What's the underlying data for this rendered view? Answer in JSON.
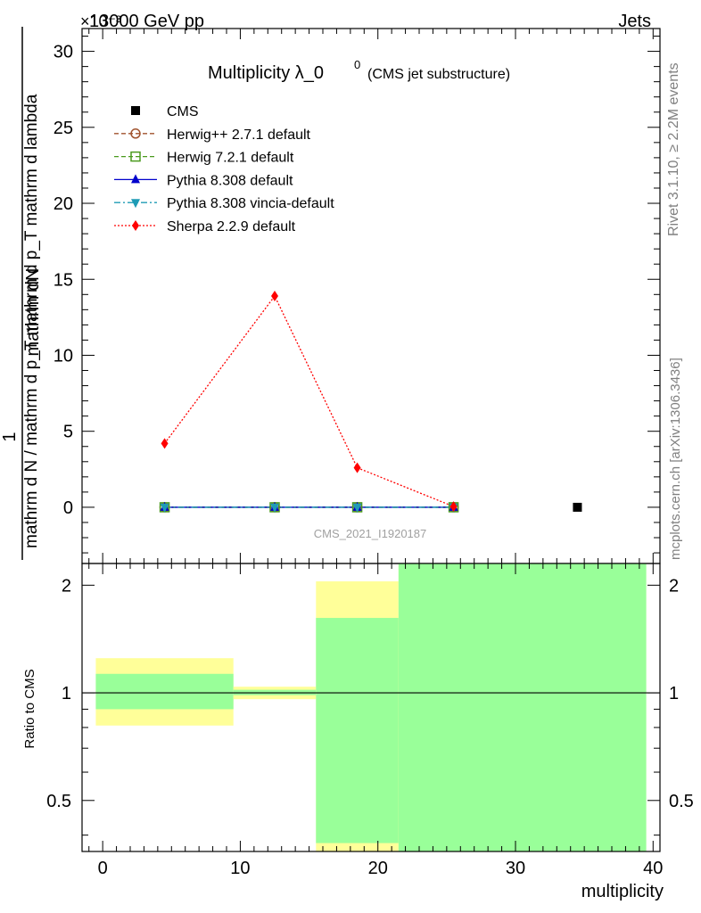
{
  "header": {
    "left": "13000 GeV pp",
    "right": "Jets"
  },
  "title": {
    "main": "Multiplicity λ_0",
    "sup": "0",
    "paren": "(CMS jet substructure)"
  },
  "side_labels": {
    "rivet": "Rivet 3.1.10, ≥ 2.2M events",
    "mcplots": "mcplots.cern.ch [arXiv:1306.3436]"
  },
  "watermark": "CMS_2021_I1920187",
  "y_label": {
    "numerator_one": "1",
    "numerator_two": "mathrm dN",
    "denominator": "mathrm d N / mathrm d p_T mathrm d p_T mathrm d lambda"
  },
  "exponent_label": "×10⁻³",
  "ratio_ylabel": "Ratio to CMS",
  "xlabel": "multiplicity",
  "legend": [
    {
      "label": "CMS",
      "color": "#000000",
      "marker": "square-filled",
      "line": "none"
    },
    {
      "label": "Herwig++ 2.7.1 default",
      "color": "#a0522d",
      "marker": "circle-open",
      "line": "dashed"
    },
    {
      "label": "Herwig 7.2.1 default",
      "color": "#4a9a1e",
      "marker": "square-open",
      "line": "dashed"
    },
    {
      "label": "Pythia 8.308 default",
      "color": "#0000cc",
      "marker": "triangle-up",
      "line": "solid"
    },
    {
      "label": "Pythia 8.308 vincia-default",
      "color": "#1e9bb5",
      "marker": "triangle-down",
      "line": "dashdot"
    },
    {
      "label": "Sherpa 2.2.9 default",
      "color": "#ff0000",
      "marker": "diamond",
      "line": "dotted"
    }
  ],
  "chart_data": [
    {
      "type": "scatter",
      "panel": "main",
      "xlim": [
        -1.5,
        40.5
      ],
      "ylim": [
        -3.7,
        31.5
      ],
      "y_scale_exponent": -3,
      "yticks": [
        0,
        5,
        10,
        15,
        20,
        25,
        30
      ],
      "series": [
        {
          "name": "CMS",
          "x": [
            34.5
          ],
          "y": [
            0.0
          ]
        },
        {
          "name": "Herwig++ 2.7.1 default",
          "x": [
            4.5,
            12.5,
            18.5,
            25.5
          ],
          "y": [
            0.0,
            0.0,
            0.0,
            0.0
          ]
        },
        {
          "name": "Herwig 7.2.1 default",
          "x": [
            4.5,
            12.5,
            18.5,
            25.5
          ],
          "y": [
            0.0,
            0.0,
            0.0,
            0.0
          ]
        },
        {
          "name": "Pythia 8.308 default",
          "x": [
            4.5,
            12.5,
            18.5,
            25.5
          ],
          "y": [
            0.0,
            0.0,
            0.0,
            0.0
          ]
        },
        {
          "name": "Pythia 8.308 vincia-default",
          "x": [
            4.5,
            12.5,
            18.5,
            25.5
          ],
          "y": [
            0.0,
            0.0,
            0.0,
            0.0
          ]
        },
        {
          "name": "Sherpa 2.2.9 default",
          "x": [
            4.5,
            12.5,
            18.5,
            25.5
          ],
          "y": [
            4.2,
            13.9,
            2.6,
            0.05
          ]
        }
      ]
    },
    {
      "type": "area",
      "panel": "ratio",
      "xlim": [
        -1.5,
        40.5
      ],
      "ylim": [
        0.36,
        2.3
      ],
      "y_scale": "log",
      "yticks": [
        0.5,
        1,
        2
      ],
      "xticks": [
        0,
        10,
        20,
        30,
        40
      ],
      "reference_line": 1,
      "bands": [
        {
          "x_low": -0.5,
          "x_high": 9.5,
          "yellow": [
            0.81,
            1.25
          ],
          "green": [
            0.9,
            1.13
          ]
        },
        {
          "x_low": 9.5,
          "x_high": 15.5,
          "yellow": [
            0.96,
            1.04
          ],
          "green": [
            0.985,
            1.02
          ]
        },
        {
          "x_low": 15.5,
          "x_high": 21.5,
          "yellow": [
            0.36,
            2.05
          ],
          "green": [
            0.38,
            1.62
          ]
        },
        {
          "x_low": 21.5,
          "x_high": 39.5,
          "yellow": [
            0.36,
            2.3
          ],
          "green": [
            0.36,
            2.3
          ]
        }
      ]
    }
  ]
}
